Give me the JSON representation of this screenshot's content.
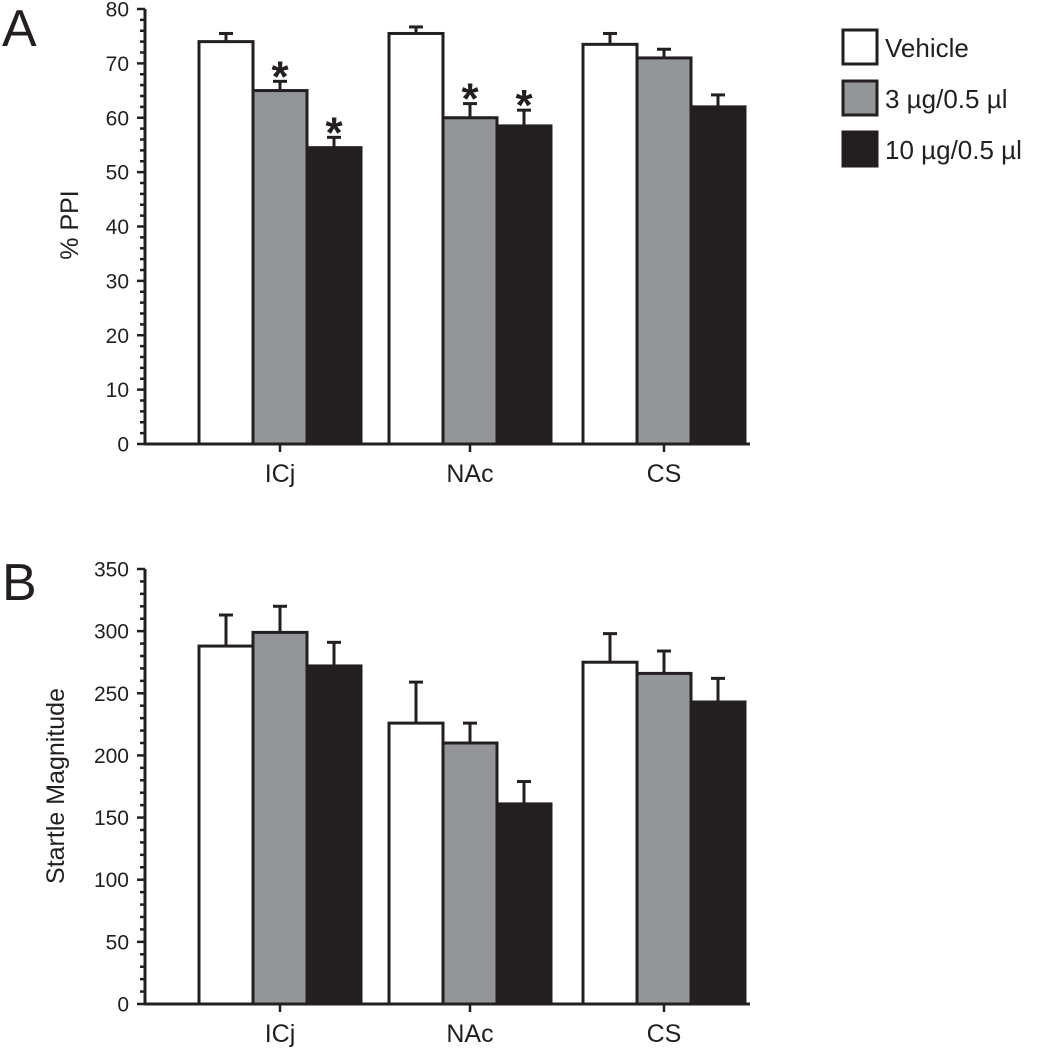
{
  "legend": [
    {
      "label": "Vehicle",
      "color": "#ffffff"
    },
    {
      "label": "3 µg/0.5 µl",
      "color": "#939598"
    },
    {
      "label": "10 µg/0.5 µl",
      "color": "#231f20"
    }
  ],
  "chart_data": [
    {
      "panel": "A",
      "type": "bar",
      "title": "",
      "xlabel": "",
      "ylabel": "% PPI",
      "ylim": [
        0,
        80
      ],
      "yticks": [
        0,
        10,
        20,
        30,
        40,
        50,
        60,
        70,
        80
      ],
      "yminor_step": 2,
      "categories": [
        "ICj",
        "NAc",
        "CS"
      ],
      "series": [
        {
          "name": "Vehicle",
          "color": "#ffffff",
          "values": [
            74,
            75.5,
            73.5
          ],
          "errors": [
            1.5,
            1.2,
            2.0
          ],
          "significant": [
            false,
            false,
            false
          ]
        },
        {
          "name": "3 µg/0.5 µl",
          "color": "#939598",
          "values": [
            65,
            60,
            71
          ],
          "errors": [
            1.7,
            2.6,
            1.6
          ],
          "significant": [
            true,
            true,
            false
          ]
        },
        {
          "name": "10 µg/0.5 µl",
          "color": "#231f20",
          "values": [
            54.5,
            58.5,
            62
          ],
          "errors": [
            1.9,
            2.9,
            2.2
          ],
          "significant": [
            true,
            true,
            false
          ]
        }
      ],
      "significance_marker": "*"
    },
    {
      "panel": "B",
      "type": "bar",
      "title": "",
      "xlabel": "",
      "ylabel": "Startle Magnitude",
      "ylim": [
        0,
        350
      ],
      "yticks": [
        0,
        50,
        100,
        150,
        200,
        250,
        300,
        350
      ],
      "yminor_step": 10,
      "categories": [
        "ICj",
        "NAc",
        "CS"
      ],
      "series": [
        {
          "name": "Vehicle",
          "color": "#ffffff",
          "values": [
            288,
            226,
            275
          ],
          "errors": [
            25,
            33,
            23
          ],
          "significant": [
            false,
            false,
            false
          ]
        },
        {
          "name": "3 µg/0.5 µl",
          "color": "#939598",
          "values": [
            299,
            210,
            266
          ],
          "errors": [
            21,
            16,
            18
          ],
          "significant": [
            false,
            false,
            false
          ]
        },
        {
          "name": "10 µg/0.5 µl",
          "color": "#231f20",
          "values": [
            272,
            161,
            243
          ],
          "errors": [
            19,
            18,
            19
          ],
          "significant": [
            false,
            false,
            false
          ]
        }
      ],
      "significance_marker": "*"
    }
  ]
}
